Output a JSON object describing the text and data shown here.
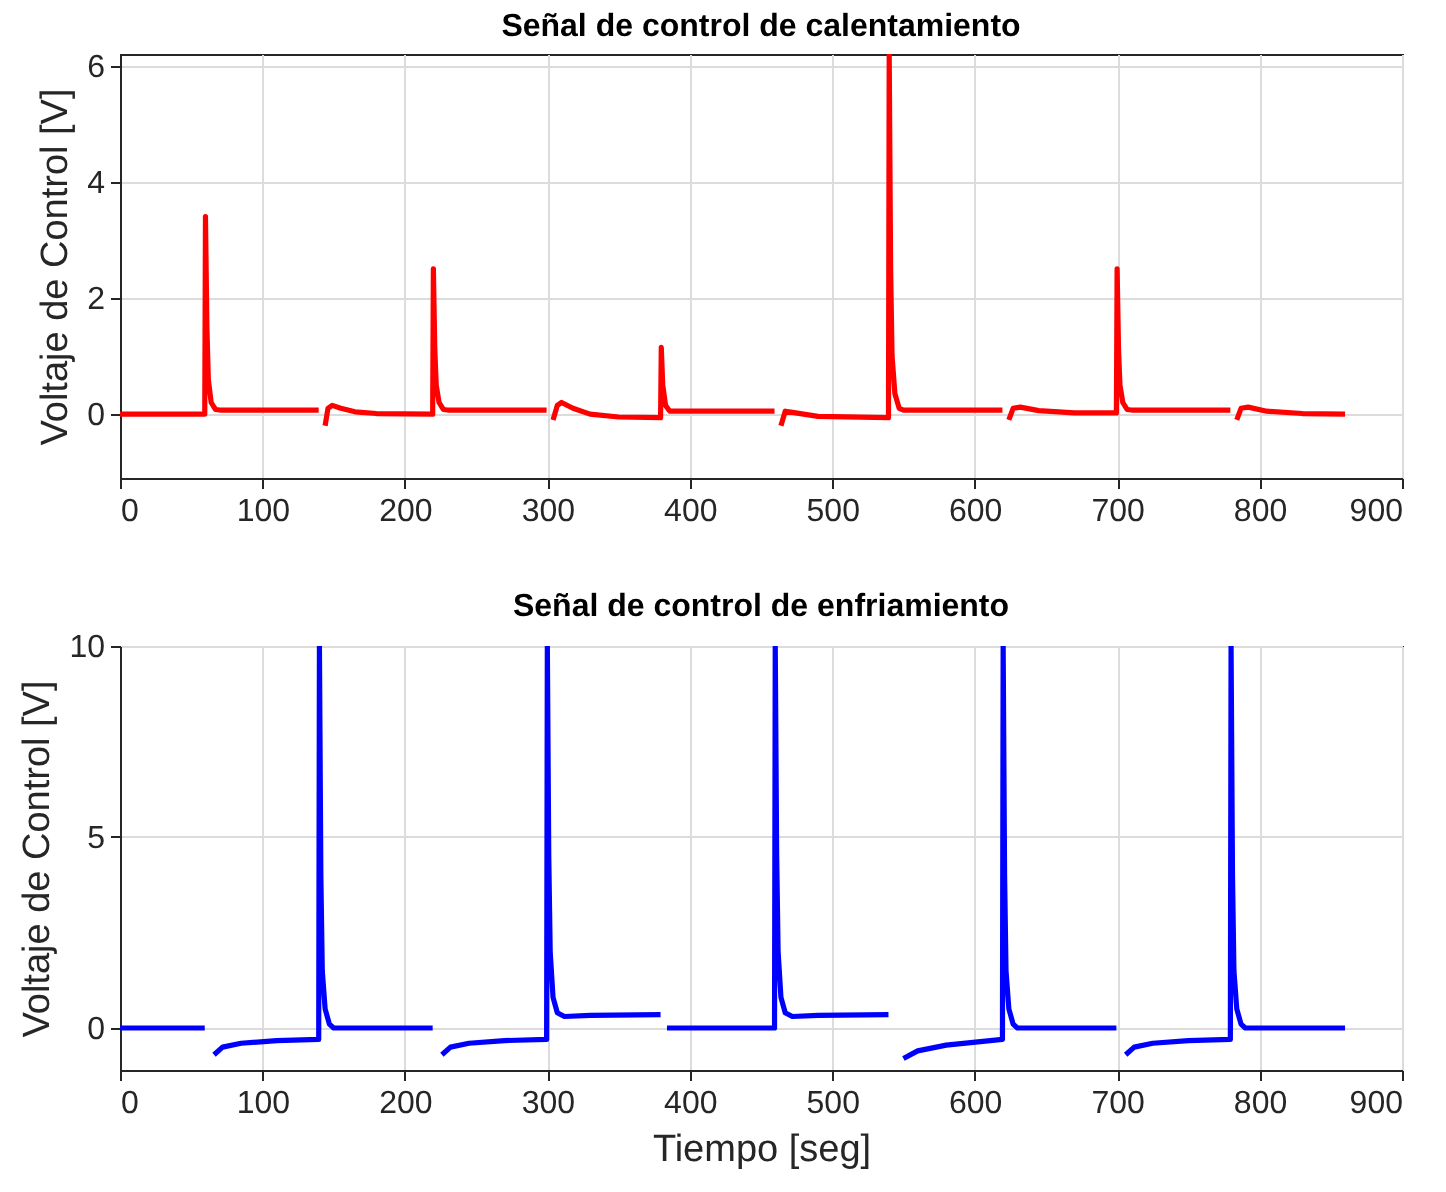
{
  "chart_data": [
    {
      "type": "line",
      "title": "Señal de control de calentamiento",
      "ylabel": "Voltaje de Control [V]",
      "xlim": [
        0,
        900
      ],
      "xticks": [
        0,
        100,
        200,
        300,
        400,
        500,
        600,
        700,
        800,
        900
      ],
      "ylim": [
        -1.1,
        6.2
      ],
      "yticks": [
        0,
        2,
        4,
        6
      ],
      "grid": true,
      "series": [
        {
          "color": "#ff0000",
          "x": [
            0,
            59.5,
            60,
            61,
            62,
            64,
            67,
            70,
            139.5,
            140,
            142,
            144,
            146,
            149,
            155,
            165,
            180,
            219.5,
            220,
            221,
            222,
            224,
            227,
            230,
            299.5,
            300,
            302,
            304,
            307,
            310,
            318,
            330,
            350,
            379.5,
            380,
            381,
            383,
            386,
            459.5,
            460,
            462,
            464,
            467,
            472,
            490,
            539.5,
            540,
            541,
            542,
            544,
            547,
            550,
            619.5,
            620,
            622,
            624,
            627,
            632,
            645,
            670,
            699.5,
            700,
            701,
            702,
            704,
            707,
            710,
            779.5,
            780,
            782,
            784,
            787,
            792,
            805,
            830,
            860
          ],
          "values": [
            0,
            0,
            3.4,
            1.5,
            0.6,
            0.2,
            0.08,
            0.07,
            0.07,
            null,
            null,
            -0.2,
            0.1,
            0.15,
            0.1,
            0.04,
            0.01,
            0,
            2.5,
            1.1,
            0.5,
            0.2,
            0.08,
            0.07,
            0.07,
            null,
            null,
            -0.1,
            0.15,
            0.2,
            0.1,
            0,
            -0.05,
            -0.06,
            1.15,
            0.5,
            0.15,
            0.05,
            0.05,
            null,
            null,
            -0.2,
            0.05,
            0.03,
            -0.04,
            -0.06,
            6.2,
            2.5,
            1,
            0.35,
            0.1,
            0.07,
            0.07,
            null,
            null,
            -0.1,
            0.1,
            0.12,
            0.06,
            0.02,
            0.02,
            2.5,
            1.1,
            0.5,
            0.2,
            0.08,
            0.07,
            0.07,
            null,
            null,
            -0.1,
            0.1,
            0.12,
            0.05,
            0.01,
            0
          ]
        }
      ]
    },
    {
      "type": "line",
      "title": "Señal de control de enfriamiento",
      "xlabel": "Tiempo [seg]",
      "ylabel": "Voltaje de Control [V]",
      "xlim": [
        0,
        900
      ],
      "xticks": [
        0,
        100,
        200,
        300,
        400,
        500,
        600,
        700,
        800,
        900
      ],
      "ylim": [
        -1.1,
        10
      ],
      "yticks": [
        0,
        5,
        10
      ],
      "grid": true,
      "series": [
        {
          "color": "#0000ff",
          "x": [
            0,
            59.5,
            60,
            63,
            66,
            72,
            85,
            110,
            139.5,
            140,
            141,
            142,
            144,
            147,
            150,
            219.5,
            220,
            223,
            226,
            232,
            245,
            270,
            299.5,
            300,
            301,
            302,
            304,
            307,
            312,
            330,
            379.5,
            380,
            382,
            384,
            459.5,
            460,
            461,
            462,
            464,
            467,
            472,
            490,
            539.5,
            540,
            545,
            550,
            560,
            580,
            619.5,
            620,
            621,
            622,
            624,
            627,
            630,
            699.5,
            700,
            703,
            706,
            712,
            725,
            750,
            779.5,
            780,
            781,
            782,
            784,
            787,
            790,
            860
          ],
          "values": [
            0,
            0,
            null,
            null,
            -0.7,
            -0.5,
            -0.4,
            -0.33,
            -0.3,
            10,
            4,
            1.5,
            0.5,
            0.1,
            0,
            0,
            null,
            null,
            -0.7,
            -0.5,
            -0.4,
            -0.33,
            -0.3,
            10,
            4.5,
            2,
            0.8,
            0.4,
            0.3,
            0.33,
            0.35,
            null,
            null,
            0,
            0,
            10,
            4.5,
            2,
            0.8,
            0.4,
            0.3,
            0.33,
            0.35,
            null,
            null,
            -0.8,
            -0.6,
            -0.45,
            -0.3,
            10,
            4,
            1.5,
            0.5,
            0.1,
            0,
            0,
            null,
            null,
            -0.7,
            -0.5,
            -0.4,
            -0.33,
            -0.3,
            10,
            4,
            1.5,
            0.5,
            0.1,
            0,
            0
          ]
        }
      ]
    }
  ]
}
